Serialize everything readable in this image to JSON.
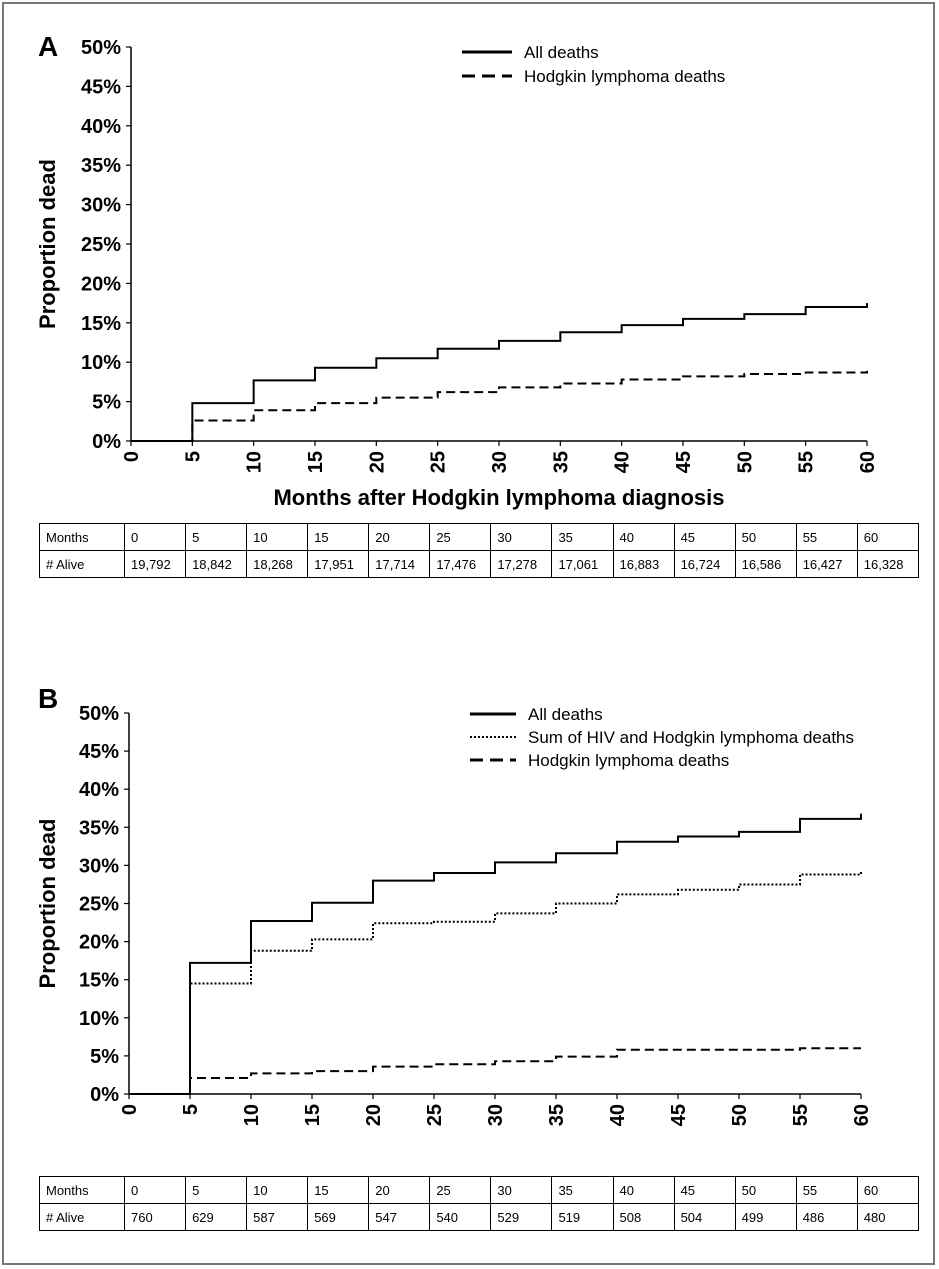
{
  "chart_data": [
    {
      "type": "line",
      "panel_label": "A",
      "xlabel": "Months after Hodgkin lymphoma diagnosis",
      "ylabel": "Proportion dead",
      "xlim": [
        0,
        60
      ],
      "ylim": [
        0,
        50
      ],
      "x_ticks": [
        "0",
        "5",
        "10",
        "15",
        "20",
        "25",
        "30",
        "35",
        "40",
        "45",
        "50",
        "55",
        "60"
      ],
      "y_ticks": [
        "0%",
        "5%",
        "10%",
        "15%",
        "20%",
        "25%",
        "30%",
        "35%",
        "40%",
        "45%",
        "50%"
      ],
      "legend_position": "top-right",
      "series": [
        {
          "name": "All deaths",
          "style": "solid",
          "step_x": [
            0,
            5,
            10,
            15,
            20,
            25,
            30,
            35,
            40,
            45,
            50,
            55,
            60
          ],
          "values": [
            0,
            4.8,
            7.7,
            9.3,
            10.5,
            11.7,
            12.7,
            13.8,
            14.7,
            15.5,
            16.1,
            17.0,
            17.5
          ]
        },
        {
          "name": "Hodgkin lymphoma deaths",
          "style": "dashed",
          "step_x": [
            0,
            5,
            10,
            15,
            20,
            25,
            30,
            35,
            40,
            45,
            50,
            55,
            60
          ],
          "values": [
            0,
            2.6,
            3.9,
            4.8,
            5.5,
            6.2,
            6.8,
            7.3,
            7.8,
            8.2,
            8.5,
            8.7,
            8.9
          ]
        }
      ],
      "table": {
        "headers": [
          "Months",
          "0",
          "5",
          "10",
          "15",
          "20",
          "25",
          "30",
          "35",
          "40",
          "45",
          "50",
          "55",
          "60"
        ],
        "rows": [
          [
            "# Alive",
            "19,792",
            "18,842",
            "18,268",
            "17,951",
            "17,714",
            "17,476",
            "17,278",
            "17,061",
            "16,883",
            "16,724",
            "16,586",
            "16,427",
            "16,328"
          ]
        ]
      }
    },
    {
      "type": "line",
      "panel_label": "B",
      "xlabel": "Months after Hodgkin lymphoma diagnosis",
      "ylabel": "Proportion dead",
      "xlim": [
        0,
        60
      ],
      "ylim": [
        0,
        50
      ],
      "x_ticks": [
        "0",
        "5",
        "10",
        "15",
        "20",
        "25",
        "30",
        "35",
        "40",
        "45",
        "50",
        "55",
        "60"
      ],
      "y_ticks": [
        "0%",
        "5%",
        "10%",
        "15%",
        "20%",
        "25%",
        "30%",
        "35%",
        "40%",
        "45%",
        "50%"
      ],
      "legend_position": "top-right",
      "series": [
        {
          "name": "All deaths",
          "style": "solid",
          "step_x": [
            0,
            5,
            10,
            15,
            20,
            25,
            30,
            35,
            40,
            45,
            50,
            55,
            60
          ],
          "values": [
            0,
            17.2,
            22.7,
            25.1,
            28.0,
            29.0,
            30.4,
            31.6,
            33.1,
            33.8,
            34.4,
            36.1,
            36.8
          ]
        },
        {
          "name": "Sum of HIV and Hodgkin lymphoma deaths",
          "style": "dotted",
          "step_x": [
            0,
            5,
            10,
            15,
            20,
            25,
            30,
            35,
            40,
            45,
            50,
            55,
            60
          ],
          "values": [
            0,
            14.5,
            18.8,
            20.3,
            22.4,
            22.6,
            23.7,
            25.0,
            26.2,
            26.8,
            27.5,
            28.8,
            29.3
          ]
        },
        {
          "name": "Hodgkin lymphoma deaths",
          "style": "dashed",
          "step_x": [
            0,
            5,
            10,
            15,
            20,
            25,
            30,
            35,
            40,
            45,
            50,
            55,
            60
          ],
          "values": [
            0,
            2.1,
            2.7,
            3.0,
            3.6,
            3.9,
            4.3,
            4.9,
            5.8,
            5.8,
            5.8,
            6.0,
            6.0
          ]
        }
      ],
      "table": {
        "headers": [
          "Months",
          "0",
          "5",
          "10",
          "15",
          "20",
          "25",
          "30",
          "35",
          "40",
          "45",
          "50",
          "55",
          "60"
        ],
        "rows": [
          [
            "# Alive",
            "760",
            "629",
            "587",
            "569",
            "547",
            "540",
            "529",
            "519",
            "508",
            "504",
            "499",
            "486",
            "480"
          ]
        ]
      }
    }
  ]
}
